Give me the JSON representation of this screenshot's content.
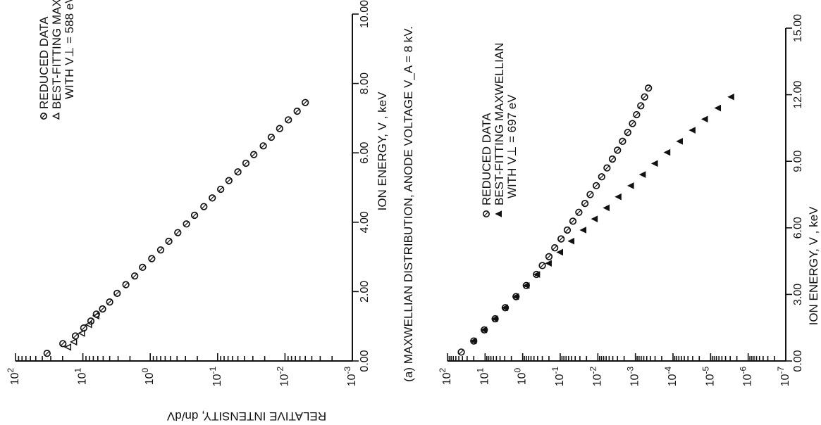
{
  "ylabel_shared": "RELATIVE INTENSITY, dn/dV",
  "chart_data": [
    {
      "id": "top",
      "type": "scatter",
      "log_y": true,
      "xlabel": "ION ENERGY, V , keV",
      "xlim": [
        0,
        10
      ],
      "ylim": [
        0.001,
        100
      ],
      "xticks": [
        "0.00",
        "2.00",
        "4.00",
        "6.00",
        "8.00",
        "10.00"
      ],
      "xtick_values": [
        0,
        2,
        4,
        6,
        8,
        10
      ],
      "yticks": [
        "10^2",
        "10^1",
        "10^0",
        "10^-1",
        "10^-2",
        "10^-3"
      ],
      "ytick_values": [
        100,
        10,
        1,
        0.1,
        0.01,
        0.001
      ],
      "caption": "(a) MAXWELLIAN DISTRIBUTION, ANODE VOLTAGE V_A = 8 kV.",
      "legend": {
        "position": "top-left",
        "entries": [
          "REDUCED DATA",
          "BEST-FITTING MAXWELLIAN",
          "WITH V⊥ = 588 eV"
        ]
      },
      "series": [
        {
          "name": "REDUCED DATA",
          "marker": "open-circle",
          "x": [
            0.22,
            0.5,
            0.72,
            0.95,
            1.15,
            1.35,
            1.5,
            1.7,
            1.95,
            2.2,
            2.45,
            2.7,
            2.95,
            3.2,
            3.45,
            3.7,
            3.95,
            4.2,
            4.45,
            4.7,
            4.95,
            5.2,
            5.45,
            5.7,
            5.95,
            6.2,
            6.45,
            6.7,
            6.95,
            7.2,
            7.45
          ],
          "y": [
            34,
            19.8,
            12.9,
            9.7,
            7.6,
            6.3,
            5.1,
            4.0,
            3.1,
            2.3,
            1.7,
            1.3,
            0.95,
            0.7,
            0.53,
            0.39,
            0.29,
            0.22,
            0.16,
            0.12,
            0.09,
            0.068,
            0.05,
            0.038,
            0.029,
            0.021,
            0.016,
            0.012,
            0.0089,
            0.0066,
            0.005
          ]
        },
        {
          "name": "BEST-FITTING MAXWELLIAN",
          "marker": "triangle",
          "x": [
            0.4,
            0.55,
            0.8,
            1.05,
            1.3
          ],
          "y": [
            16.5,
            13.5,
            10.3,
            8.1,
            6.3
          ]
        }
      ]
    },
    {
      "id": "bottom",
      "type": "scatter",
      "log_y": true,
      "xlabel": "ION ENERGY, V , keV",
      "xlim": [
        0,
        15
      ],
      "ylim": [
        1e-07,
        100
      ],
      "xticks": [
        "0.00",
        "3.00",
        "6.00",
        "9.00",
        "12.00",
        "15.00"
      ],
      "xtick_values": [
        0,
        3,
        6,
        9,
        12,
        15
      ],
      "yticks": [
        "10^2",
        "10^1",
        "10^0",
        "10^-1",
        "10^-2",
        "10^-3",
        "10^-4",
        "10^-5",
        "10^-6",
        "10^-7"
      ],
      "ytick_values": [
        100,
        10,
        1,
        0.1,
        0.01,
        0.001,
        0.0001,
        1e-05,
        1e-06,
        1e-07
      ],
      "legend": {
        "position": "top-left",
        "entries": [
          "REDUCED DATA",
          "BEST-FITTING MAXWELLIAN",
          "WITH V⊥ = 697 eV"
        ]
      },
      "series": [
        {
          "name": "REDUCED DATA",
          "marker": "open-circle",
          "x": [
            0.4,
            0.9,
            1.4,
            1.9,
            2.4,
            2.9,
            3.4,
            3.9,
            4.3,
            4.7,
            5.1,
            5.5,
            5.9,
            6.3,
            6.7,
            7.1,
            7.5,
            7.9,
            8.3,
            8.7,
            9.1,
            9.5,
            9.9,
            10.3,
            10.7,
            11.1,
            11.5,
            11.9,
            12.3
          ],
          "y": [
            43,
            20,
            10.5,
            5.4,
            2.9,
            1.5,
            0.8,
            0.43,
            0.3,
            0.2,
            0.14,
            0.095,
            0.065,
            0.046,
            0.032,
            0.022,
            0.016,
            0.011,
            0.0079,
            0.0057,
            0.0041,
            0.003,
            0.0022,
            0.0016,
            0.0012,
            0.00093,
            0.00072,
            0.00057,
            0.00045
          ]
        },
        {
          "name": "BEST-FITTING MAXWELLIAN",
          "marker": "filled-triangle",
          "x": [
            0.9,
            1.4,
            1.9,
            2.4,
            2.9,
            3.4,
            3.9,
            4.4,
            4.9,
            5.4,
            5.9,
            6.4,
            6.9,
            7.4,
            7.9,
            8.4,
            8.9,
            9.4,
            9.9,
            10.4,
            10.9,
            11.4,
            11.9
          ],
          "y": [
            20,
            10.5,
            5.4,
            2.9,
            1.5,
            0.78,
            0.41,
            0.2,
            0.1,
            0.05,
            0.024,
            0.012,
            0.0058,
            0.0028,
            0.0013,
            0.00063,
            0.0003,
            0.00014,
            6.5e-05,
            3e-05,
            1.4e-05,
            6.3e-06,
            2.8e-06
          ]
        }
      ]
    }
  ]
}
